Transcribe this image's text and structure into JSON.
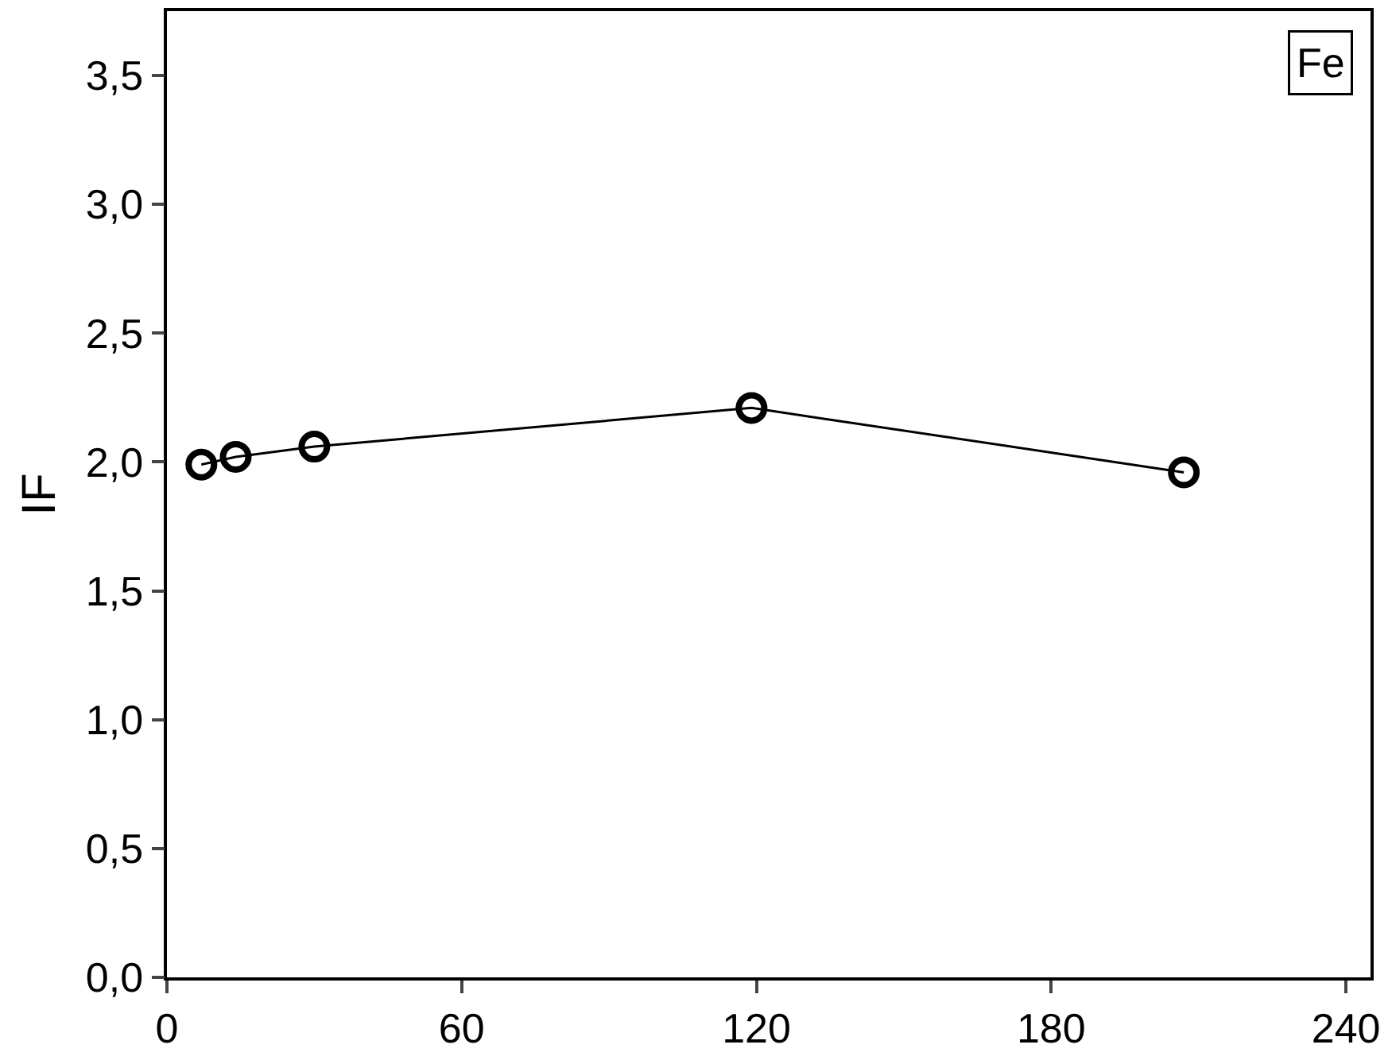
{
  "chart_data": {
    "type": "line",
    "ylabel": "IF",
    "x": [
      7,
      14,
      30,
      119,
      207
    ],
    "series": [
      {
        "color": "#000000",
        "values": [
          1.99,
          2.02,
          2.06,
          2.21,
          1.96
        ]
      }
    ],
    "xlim": [
      0,
      245
    ],
    "ylim": [
      0,
      3.75
    ],
    "xticks": [
      0,
      60,
      120,
      180,
      240
    ],
    "yticks": [
      {
        "value": 0,
        "label": "0,0"
      },
      {
        "value": 0.5,
        "label": "0,5"
      },
      {
        "value": 1,
        "label": "1,0"
      },
      {
        "value": 1.5,
        "label": "1,5"
      },
      {
        "value": 2,
        "label": "2,0"
      },
      {
        "value": 2.5,
        "label": "2,5"
      },
      {
        "value": 3,
        "label": "3,0"
      },
      {
        "value": 3.5,
        "label": "3,5"
      }
    ],
    "annotations": [
      "Fe"
    ],
    "marker": "circle",
    "line_style": "solid"
  }
}
